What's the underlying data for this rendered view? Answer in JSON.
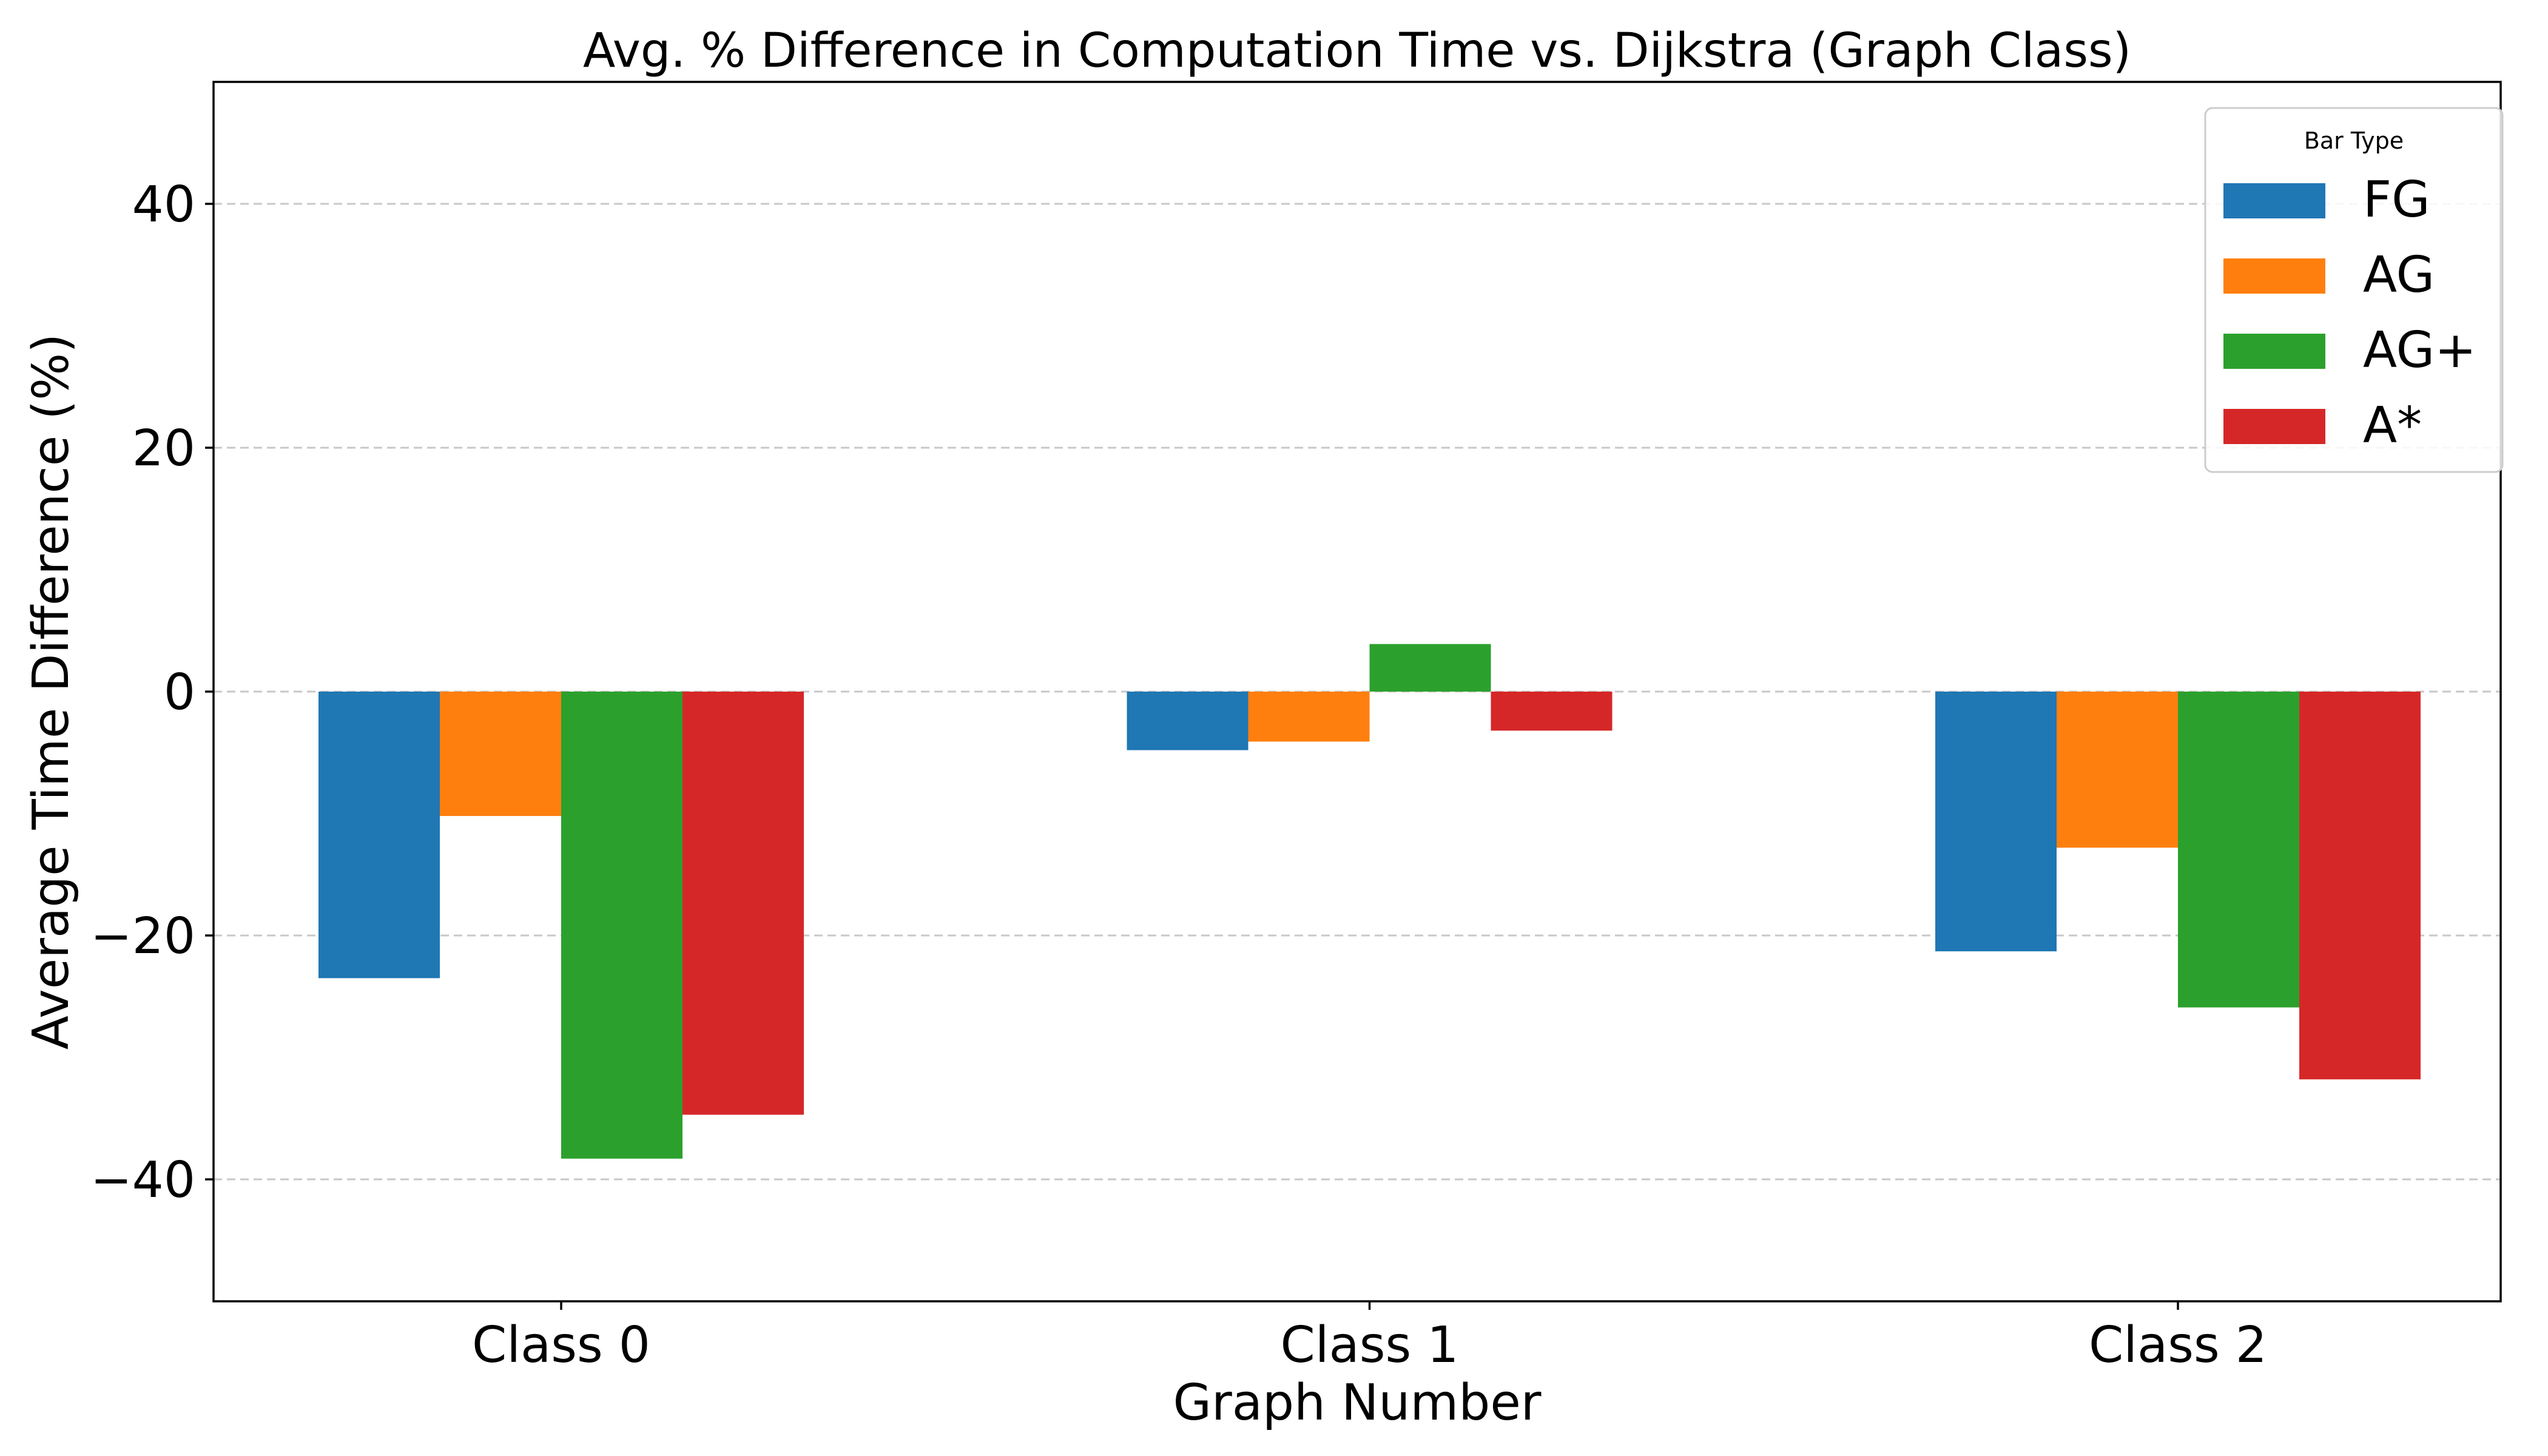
{
  "chart_data": {
    "type": "bar",
    "title": "Avg. % Difference in Computation Time vs. Dijkstra (Graph Class)",
    "xlabel": "Graph Number",
    "ylabel": "Average Time Difference (%)",
    "categories": [
      "Class 0",
      "Class 1",
      "Class 2"
    ],
    "series": [
      {
        "name": "FG",
        "color": "#1f77b4",
        "values": [
          -23.5,
          -4.8,
          -21.3
        ]
      },
      {
        "name": "AG",
        "color": "#ff7f0e",
        "values": [
          -10.2,
          -4.1,
          -12.8
        ]
      },
      {
        "name": "AG+",
        "color": "#2ca02c",
        "values": [
          -38.3,
          3.9,
          -25.9
        ]
      },
      {
        "name": "A*",
        "color": "#d62728",
        "values": [
          -34.7,
          -3.2,
          -31.8
        ]
      }
    ],
    "ylim": [
      -50,
      50
    ],
    "yticks": [
      {
        "value": -40,
        "label": "−40"
      },
      {
        "value": -20,
        "label": "−20"
      },
      {
        "value": 0,
        "label": "0"
      },
      {
        "value": 20,
        "label": "20"
      },
      {
        "value": 40,
        "label": "40"
      }
    ],
    "grid": "y-dashed",
    "legend": {
      "title": "Bar Type",
      "position": "top-right"
    }
  }
}
